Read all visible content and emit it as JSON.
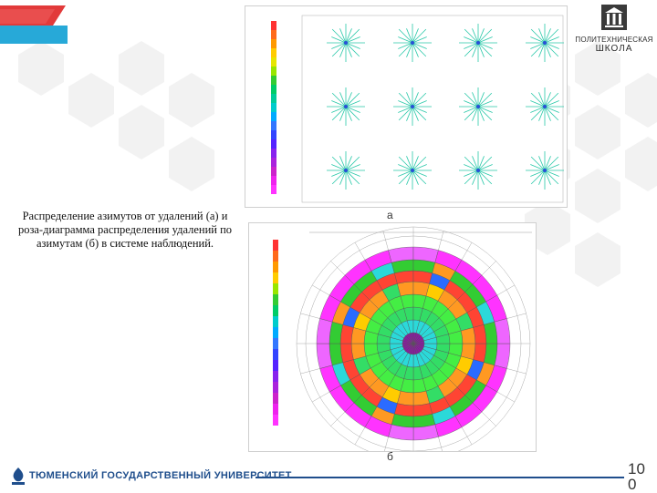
{
  "logo": {
    "line1": "ПОЛИТЕХНИЧЕСКАЯ",
    "line2": "ШКОЛА"
  },
  "caption": "Распределение азимутов от удалений (а) и роза-диаграмма распределения удалений по азимутам (б) в системе наблюдений.",
  "figure_a_label": "а",
  "figure_b_label": "б",
  "footer": "ТЮМЕНСКИЙ ГОСУДАРСТВЕННЫЙ УНИВЕРСИТЕТ",
  "page_number": "10 0",
  "colors": {
    "brand": "#1f4e8c",
    "accent_cyan": "#27a9d8"
  }
}
